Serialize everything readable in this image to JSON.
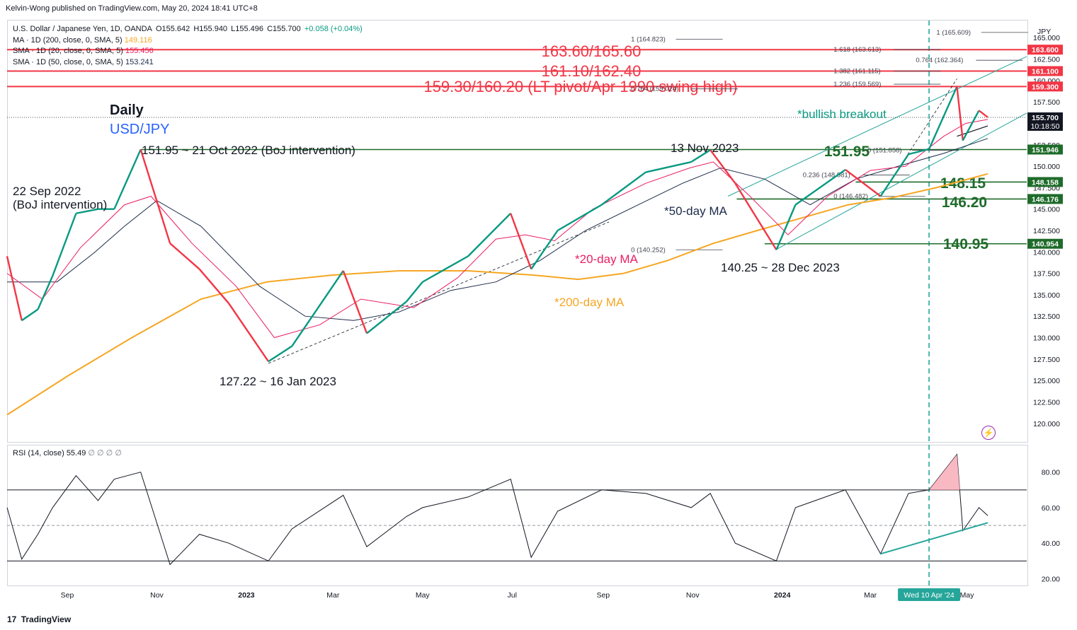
{
  "header": {
    "publisher": "Kelvin-Wong published on TradingView.com, May 20, 2024 18:41 UTC+8"
  },
  "legend": {
    "symbol": "U.S. Dollar / Japanese Yen, 1D, OANDA",
    "open": "O155.642",
    "high": "H155.940",
    "low": "L155.496",
    "close": "C155.700",
    "change": "+0.058 (+0.04%)",
    "ma200_label": "MA · 1D (200, close, 0, SMA, 5)",
    "ma200_value": "149.116",
    "sma20_label": "SMA · 1D (20, close, 0, SMA, 5)",
    "sma20_value": "155.456",
    "sma50_label": "SMA · 1D (50, close, 0, SMA, 5)",
    "sma50_value": "153.241",
    "rsi_label": "RSI (14, close)",
    "rsi_value": "55.49",
    "rsi_extra": "∅ ∅ ∅ ∅"
  },
  "footer": {
    "brand": "TradingView",
    "logo": "17"
  },
  "chart_data": [
    {
      "type": "line",
      "chart": "price",
      "currency": "JPY",
      "ylim": [
        118,
        167
      ],
      "y_ticks": [
        "120.000",
        "122.500",
        "125.000",
        "127.500",
        "130.000",
        "132.500",
        "135.000",
        "137.500",
        "140.000",
        "142.500",
        "145.000",
        "147.500",
        "150.000",
        "152.500",
        "155.000",
        "157.500",
        "160.000",
        "162.500",
        "165.000"
      ],
      "x_ticks": [
        "Sep",
        "Nov",
        "2023",
        "Mar",
        "May",
        "Jul",
        "Sep",
        "Nov",
        "2024",
        "Mar",
        "May"
      ],
      "x_tick_highlight": "Wed 10 Apr '24",
      "series": [
        {
          "name": "USD/JPY",
          "x": [
            "2022-07-22",
            "2022-08-01",
            "2022-08-12",
            "2022-08-22",
            "2022-09-07",
            "2022-09-22",
            "2022-10-03",
            "2022-10-21",
            "2022-11-10",
            "2022-11-30",
            "2022-12-20",
            "2023-01-16",
            "2023-02-01",
            "2023-03-08",
            "2023-03-24",
            "2023-04-20",
            "2023-05-01",
            "2023-06-01",
            "2023-06-30",
            "2023-07-14",
            "2023-08-01",
            "2023-08-31",
            "2023-09-30",
            "2023-10-31",
            "2023-11-13",
            "2023-11-30",
            "2023-12-28",
            "2024-01-10",
            "2024-02-13",
            "2024-03-08",
            "2024-03-27",
            "2024-04-10",
            "2024-04-29",
            "2024-05-03",
            "2024-05-14",
            "2024-05-20"
          ],
          "y": [
            139.5,
            132.0,
            133.3,
            137.2,
            144.5,
            145.0,
            145.0,
            151.95,
            141.0,
            138.0,
            134.0,
            127.22,
            129.0,
            137.8,
            130.5,
            134.2,
            136.5,
            139.5,
            144.5,
            138.0,
            142.5,
            145.5,
            149.3,
            150.5,
            151.9,
            148.0,
            140.25,
            145.5,
            149.6,
            146.5,
            151.4,
            152.0,
            159.3,
            153.0,
            156.5,
            155.7
          ]
        },
        {
          "name": "*20-day MA",
          "x": [
            "2022-07-22",
            "2022-08-15",
            "2022-09-10",
            "2022-10-10",
            "2022-10-28",
            "2022-11-25",
            "2022-12-25",
            "2023-01-20",
            "2023-02-20",
            "2023-03-20",
            "2023-04-25",
            "2023-05-25",
            "2023-06-20",
            "2023-07-10",
            "2023-07-30",
            "2023-08-25",
            "2023-09-30",
            "2023-10-30",
            "2023-11-15",
            "2023-12-10",
            "2024-01-05",
            "2024-02-01",
            "2024-03-01",
            "2024-03-25",
            "2024-04-20",
            "2024-05-05",
            "2024-05-20"
          ],
          "y": [
            137.5,
            134.5,
            140.5,
            145.5,
            146.5,
            141.0,
            136.0,
            130.0,
            131.5,
            134.5,
            133.5,
            137.0,
            141.5,
            142.0,
            141.3,
            145.0,
            148.0,
            149.8,
            150.5,
            146.5,
            142.0,
            146.5,
            149.5,
            150.0,
            153.5,
            155.0,
            155.456
          ]
        },
        {
          "name": "*50-day MA",
          "x": [
            "2022-07-22",
            "2022-08-25",
            "2022-09-20",
            "2022-10-10",
            "2022-11-01",
            "2022-12-01",
            "2023-01-10",
            "2023-02-10",
            "2023-03-15",
            "2023-04-15",
            "2023-05-20",
            "2023-06-20",
            "2023-07-20",
            "2023-08-20",
            "2023-09-25",
            "2023-10-25",
            "2023-11-20",
            "2023-12-20",
            "2024-01-20",
            "2024-02-20",
            "2024-03-20",
            "2024-04-20",
            "2024-05-20"
          ],
          "y": [
            136.5,
            136.5,
            140.0,
            143.0,
            146.0,
            143.0,
            136.0,
            132.5,
            132.0,
            133.0,
            135.5,
            136.5,
            139.0,
            142.5,
            145.5,
            148.0,
            149.8,
            148.5,
            145.5,
            148.5,
            150.0,
            151.5,
            153.241
          ]
        },
        {
          "name": "*200-day MA",
          "x": [
            "2022-07-22",
            "2022-09-01",
            "2022-10-15",
            "2022-12-01",
            "2023-01-15",
            "2023-03-01",
            "2023-04-15",
            "2023-06-01",
            "2023-07-15",
            "2023-08-15",
            "2023-09-15",
            "2023-10-15",
            "2023-11-15",
            "2023-12-15",
            "2024-01-15",
            "2024-02-15",
            "2024-03-15",
            "2024-04-15",
            "2024-05-20"
          ],
          "y": [
            121.0,
            125.5,
            130.0,
            134.5,
            136.5,
            137.3,
            137.8,
            137.8,
            137.3,
            136.8,
            137.5,
            139.0,
            141.0,
            142.5,
            144.0,
            145.5,
            146.3,
            147.5,
            149.116
          ]
        }
      ],
      "price_labels": [
        {
          "value": 163.6,
          "label": "163.600",
          "color": "#f23645"
        },
        {
          "value": 161.1,
          "label": "161.100",
          "color": "#f23645"
        },
        {
          "value": 159.3,
          "label": "159.300",
          "color": "#f23645"
        },
        {
          "value": 155.7,
          "label": "155.700",
          "color": "#131722",
          "sub": "10:18:50"
        },
        {
          "value": 151.946,
          "label": "151.946",
          "color": "#1e6b2a"
        },
        {
          "value": 148.158,
          "label": "148.158",
          "color": "#1e6b2a"
        },
        {
          "value": 146.176,
          "label": "146.176",
          "color": "#1e6b2a"
        },
        {
          "value": 140.954,
          "label": "140.954",
          "color": "#1e6b2a"
        }
      ],
      "resistance_lines": [
        {
          "y": 163.6,
          "label": "163.60/165.60"
        },
        {
          "y": 161.1,
          "label": "161.10/162.40"
        },
        {
          "y": 159.3,
          "label": "159.30/160.20 (LT pivot/Apr 1990 swing high)"
        }
      ],
      "support_lines": [
        {
          "y": 151.946,
          "label": "151.95",
          "x_start": "2022-10-21"
        },
        {
          "y": 148.158,
          "label": "148.15",
          "x_start": "2024-02-20"
        },
        {
          "y": 146.176,
          "label": "146.20",
          "x_start": "2023-12-01"
        },
        {
          "y": 140.954,
          "label": "140.95",
          "x_start": "2023-12-20"
        }
      ],
      "fib_levels": [
        {
          "label": "1 (164.823)",
          "y": 164.823,
          "x": "2023-09-20"
        },
        {
          "label": "0.764 (159.024)",
          "y": 159.024,
          "x": "2023-09-20"
        },
        {
          "label": "0 (140.252)",
          "y": 140.252,
          "x": "2023-09-20"
        },
        {
          "label": "1 (165.609)",
          "y": 165.609,
          "x": "2024-04-15"
        },
        {
          "label": "1.618 (163.613)",
          "y": 163.613,
          "x": "2024-02-05"
        },
        {
          "label": "0.764 (162.364)",
          "y": 162.364,
          "x": "2024-04-01"
        },
        {
          "label": "1.382 (161.115)",
          "y": 161.115,
          "x": "2024-02-05"
        },
        {
          "label": "1.236 (159.569)",
          "y": 159.569,
          "x": "2024-02-05"
        },
        {
          "label": "0 (151.858)",
          "y": 151.858,
          "x": "2024-02-28"
        },
        {
          "label": "0.236 (148.981)",
          "y": 148.981,
          "x": "2024-01-15"
        },
        {
          "label": "0 (146.482)",
          "y": 146.482,
          "x": "2024-02-05"
        }
      ],
      "annotations": [
        {
          "text": "Daily",
          "color": "#131722"
        },
        {
          "text": "USD/JPY",
          "color": "#2962ff"
        },
        {
          "text": "151.95 ~ 21 Oct 2022 (BoJ intervention)",
          "color": "#131722"
        },
        {
          "text": "22 Sep 2022",
          "color": "#131722"
        },
        {
          "text": "(BoJ intervention)",
          "color": "#131722"
        },
        {
          "text": "13 Nov 2023",
          "color": "#131722"
        },
        {
          "text": "*bullish breakout",
          "color": "#089981"
        },
        {
          "text": "*50-day MA",
          "color": "#1c2b4a"
        },
        {
          "text": "*20-day MA",
          "color": "#e91e63"
        },
        {
          "text": "*200-day MA",
          "color": "#f5a623"
        },
        {
          "text": "140.25 ~ 28 Dec 2023",
          "color": "#131722"
        },
        {
          "text": "127.22 ~ 16 Jan 2023",
          "color": "#131722"
        }
      ],
      "colors": {
        "price_up": "#089981",
        "price_down": "#f23645",
        "ma20": "#e91e63",
        "ma50": "#1c2b4a",
        "ma200": "#f5a623",
        "resistance": "#f23645",
        "support": "#1e6b2a",
        "channel": "#26a69a"
      }
    },
    {
      "type": "line",
      "chart": "rsi",
      "ylim": [
        17,
        95
      ],
      "y_ticks": [
        "20.00",
        "40.00",
        "60.00",
        "80.00"
      ],
      "overbought": 70,
      "oversold": 30,
      "midline": 50,
      "series": [
        {
          "name": "RSI (14, close)",
          "x": [
            "2022-07-22",
            "2022-08-01",
            "2022-08-12",
            "2022-08-22",
            "2022-09-07",
            "2022-09-22",
            "2022-10-03",
            "2022-10-21",
            "2022-11-10",
            "2022-11-30",
            "2022-12-20",
            "2023-01-16",
            "2023-02-01",
            "2023-03-08",
            "2023-03-24",
            "2023-04-20",
            "2023-05-01",
            "2023-06-01",
            "2023-06-30",
            "2023-07-14",
            "2023-08-01",
            "2023-08-31",
            "2023-09-30",
            "2023-10-31",
            "2023-11-13",
            "2023-11-30",
            "2023-12-28",
            "2024-01-10",
            "2024-02-13",
            "2024-03-08",
            "2024-03-27",
            "2024-04-10",
            "2024-04-29",
            "2024-05-03",
            "2024-05-14",
            "2024-05-20"
          ],
          "y": [
            60,
            31,
            45,
            60,
            78,
            64,
            76,
            80,
            28,
            45,
            40,
            30,
            48,
            67,
            38,
            55,
            60,
            66,
            76,
            32,
            58,
            70,
            68,
            60,
            68,
            40,
            30,
            60,
            70,
            34,
            68,
            70,
            90,
            47,
            60,
            55.49
          ]
        }
      ],
      "support_trendline": {
        "x": [
          "2024-03-08",
          "2024-05-20"
        ],
        "y": [
          34,
          51.5
        ]
      }
    }
  ]
}
